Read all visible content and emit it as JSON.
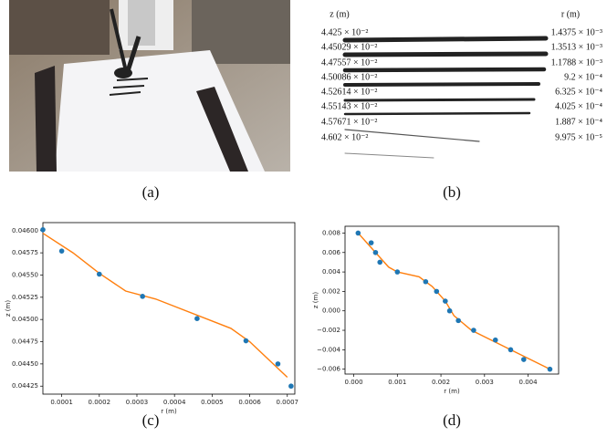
{
  "figure": {
    "panel_labels": [
      "(a)",
      "(b)",
      "(c)",
      "(d)"
    ],
    "table": {
      "headers": [
        "z (m)",
        "r (m)"
      ],
      "rows": [
        [
          "4.425 × 10⁻²",
          "1.4375 × 10⁻³"
        ],
        [
          "4.45029 × 10⁻²",
          "1.3513 × 10⁻³"
        ],
        [
          "4.47557 × 10⁻²",
          "1.1788 × 10⁻³"
        ],
        [
          "4.50086 × 10⁻²",
          "9.2 × 10⁻⁴"
        ],
        [
          "4.52614 × 10⁻²",
          "6.325 × 10⁻⁴"
        ],
        [
          "4.55143 × 10⁻²",
          "4.025 × 10⁻⁴"
        ],
        [
          "4.57671 × 10⁻²",
          "1.887 × 10⁻⁴"
        ],
        [
          "4.602 × 10⁻²",
          "9.975 × 10⁻⁵"
        ]
      ]
    }
  },
  "chart_data": [
    {
      "type": "scatter",
      "xlabel": "r (m)",
      "ylabel": "z (m)",
      "xlim": [
        5e-05,
        0.00072
      ],
      "ylim": [
        0.04416,
        0.04609
      ],
      "xticks": [
        0.0001,
        0.0002,
        0.0003,
        0.0004,
        0.0005,
        0.0006,
        0.0007
      ],
      "yticks": [
        {
          "value": 0.04425,
          "label": "0.04425"
        },
        {
          "value": 0.0445,
          "label": "0.04450"
        },
        {
          "value": 0.04475,
          "label": "0.04475"
        },
        {
          "value": 0.045,
          "label": "0.04500"
        },
        {
          "value": 0.04525,
          "label": "0.04525"
        },
        {
          "value": 0.0455,
          "label": "0.04550"
        },
        {
          "value": 0.04575,
          "label": "0.04575"
        },
        {
          "value": 0.046,
          "label": "0.04600"
        }
      ],
      "series": [
        {
          "kind": "line",
          "color": "#ff7f0e",
          "x": [
            5e-05,
            0.00013,
            0.0002,
            0.00027,
            0.00035,
            0.00055,
            0.0006,
            0.0007
          ],
          "values": [
            0.04597,
            0.04575,
            0.04552,
            0.04532,
            0.04523,
            0.0449,
            0.04475,
            0.04435
          ]
        },
        {
          "kind": "scatter",
          "color": "#1f77b4",
          "x": [
            5e-05,
            0.0001,
            0.0002,
            0.000315,
            0.00046,
            0.00059,
            0.000675,
            0.00071
          ],
          "values": [
            0.04601,
            0.04577,
            0.04551,
            0.04526,
            0.04501,
            0.04476,
            0.0445,
            0.04425
          ]
        }
      ]
    },
    {
      "type": "scatter",
      "xlabel": "r (m)",
      "ylabel": "z (m)",
      "xlim": [
        -0.0002,
        0.0047
      ],
      "ylim": [
        -0.0065,
        0.0087
      ],
      "xticks": [
        {
          "value": 0,
          "label": "0.000"
        },
        {
          "value": 0.001,
          "label": "0.001"
        },
        {
          "value": 0.002,
          "label": "0.002"
        },
        {
          "value": 0.003,
          "label": "0.003"
        },
        {
          "value": 0.004,
          "label": "0.004"
        }
      ],
      "yticks": [
        {
          "value": -0.006,
          "label": "−0.006"
        },
        {
          "value": -0.004,
          "label": "−0.004"
        },
        {
          "value": -0.002,
          "label": "−0.002"
        },
        {
          "value": 0,
          "label": "0.000"
        },
        {
          "value": 0.002,
          "label": "0.002"
        },
        {
          "value": 0.004,
          "label": "0.004"
        },
        {
          "value": 0.006,
          "label": "0.006"
        },
        {
          "value": 0.008,
          "label": "0.008"
        }
      ],
      "series": [
        {
          "kind": "line",
          "color": "#ff7f0e",
          "x": [
            0.0001,
            0.0003,
            0.0006,
            0.0008,
            0.001,
            0.0015,
            0.0018,
            0.0021,
            0.0023,
            0.0027,
            0.0036,
            0.0045
          ],
          "values": [
            0.008,
            0.007,
            0.0055,
            0.0045,
            0.004,
            0.0035,
            0.0025,
            0.001,
            -0.0005,
            -0.002,
            -0.004,
            -0.006
          ]
        },
        {
          "kind": "scatter",
          "color": "#1f77b4",
          "x": [
            0.0001,
            0.0004,
            0.0005,
            0.0006,
            0.001,
            0.00165,
            0.0019,
            0.0021,
            0.0022,
            0.0024,
            0.00275,
            0.00325,
            0.0036,
            0.0039,
            0.0045
          ],
          "values": [
            0.008,
            0.007,
            0.006,
            0.005,
            0.004,
            0.003,
            0.002,
            0.001,
            0,
            -0.001,
            -0.002,
            -0.003,
            -0.004,
            -0.005,
            -0.006
          ]
        }
      ]
    }
  ]
}
